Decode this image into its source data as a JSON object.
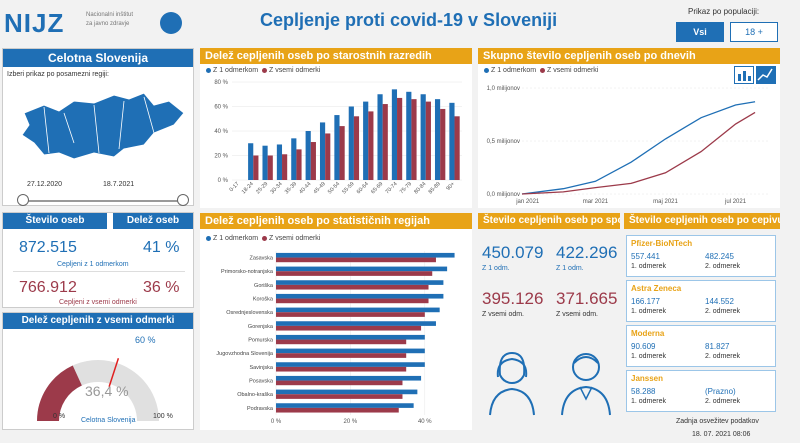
{
  "header": {
    "logo_text": "NIJZ",
    "logo_sub": [
      "Nacionalni inštitut",
      "za javno zdravje"
    ],
    "title": "Cepljenje proti covid-19 v Sloveniji",
    "population_label": "Prikaz po populaciji:",
    "pop_buttons": [
      "Vsi",
      "18 +"
    ]
  },
  "region": {
    "title": "Celotna Slovenija",
    "prompt": "Izberi prikaz po posamezni regiji:",
    "date_from": "27.12.2020",
    "date_to": "18.7.2021"
  },
  "stats": {
    "head_left": "Število oseb",
    "head_right": "Delež oseb",
    "first_count": "872.515",
    "first_pct": "41 %",
    "first_label": "Cepljeni z 1 odmerkom",
    "full_count": "766.912",
    "full_pct": "36 %",
    "full_label": "Cepljeni z vsemi odmerki"
  },
  "gauge": {
    "title": "Delež cepljenih z vsemi odmerki",
    "value_label": "36,4 %",
    "target_label": "60 %",
    "min_label": "0 %",
    "max_label": "100 %",
    "caption": "Celotna Slovenija",
    "value": 36.4,
    "target": 60
  },
  "age_chart": {
    "title": "Delež cepljenih oseb po starostnih razredih",
    "legend": [
      "Z 1 odmerkom",
      "Z vsemi odmerki"
    ],
    "y_ticks": [
      "0 %",
      "20 %",
      "40 %",
      "60 %",
      "80 %"
    ]
  },
  "daily_chart": {
    "title": "Skupno število cepljenih oseb po dnevih",
    "legend": [
      "Z 1 odmerkom",
      "Z vsemi odmerki"
    ],
    "y_ticks": [
      "0,0 milijonov",
      "0,5 milijonov",
      "1,0 milijonov"
    ],
    "x_ticks": [
      "jan 2021",
      "mar 2021",
      "maj 2021",
      "jul 2021"
    ]
  },
  "region_chart": {
    "title": "Delež cepljenih oseb po statističnih regijah",
    "legend": [
      "Z 1 odmerkom",
      "Z vsemi odmerki"
    ],
    "x_ticks": [
      "0 %",
      "20 %",
      "40 %"
    ]
  },
  "sex": {
    "title": "Število cepljenih oseb po spolu",
    "f_first": "450.079",
    "m_first": "422.296",
    "first_label": "Z 1 odm.",
    "f_full": "395.126",
    "m_full": "371.665",
    "full_label": "Z vsemi odm."
  },
  "vaccines": {
    "title": "Število cepljenih oseb po cepivu",
    "items": [
      {
        "name": "Pfizer-BioNTech",
        "v1": "557.441",
        "v2": "482.245",
        "l1": "1. odmerek",
        "l2": "2. odmerek"
      },
      {
        "name": "Astra Zeneca",
        "v1": "166.177",
        "v2": "144.552",
        "l1": "1. odmerek",
        "l2": "2. odmerek"
      },
      {
        "name": "Moderna",
        "v1": "90.609",
        "v2": "81.827",
        "l1": "1. odmerek",
        "l2": "2. odmerek"
      },
      {
        "name": "Janssen",
        "v1": "58.288",
        "v2": "(Prazno)",
        "l1": "1. odmerek",
        "l2": "2. odmerek"
      }
    ]
  },
  "footer": {
    "updated_label": "Zadnja osvežitev podatkov",
    "updated_value": "18. 07. 2021 08:06"
  },
  "colors": {
    "blue": "#1f6fb5",
    "maroon": "#9c3a4a",
    "orange": "#e8a317"
  },
  "chart_data": [
    {
      "type": "bar",
      "title": "Delež cepljenih oseb po starostnih razredih",
      "categories": [
        "0-17",
        "18-24",
        "25-29",
        "30-34",
        "35-39",
        "40-44",
        "45-49",
        "50-54",
        "55-59",
        "60-64",
        "65-69",
        "70-74",
        "75-79",
        "80-84",
        "85-89",
        "90+"
      ],
      "series": [
        {
          "name": "Z 1 odmerkom",
          "values": [
            0,
            30,
            28,
            29,
            34,
            40,
            47,
            53,
            60,
            64,
            70,
            74,
            72,
            70,
            66,
            63
          ]
        },
        {
          "name": "Z vsemi odmerki",
          "values": [
            0,
            20,
            20,
            21,
            25,
            31,
            38,
            44,
            52,
            56,
            62,
            67,
            66,
            64,
            58,
            52
          ]
        }
      ],
      "ylim": [
        0,
        80
      ]
    },
    {
      "type": "line",
      "title": "Skupno število cepljenih oseb po dnevih",
      "x": [
        "2020-12-27",
        "2021-02-01",
        "2021-03-01",
        "2021-04-01",
        "2021-05-01",
        "2021-06-01",
        "2021-07-01",
        "2021-07-18"
      ],
      "series": [
        {
          "name": "Z 1 odmerkom",
          "values": [
            0.0,
            0.05,
            0.12,
            0.3,
            0.52,
            0.72,
            0.84,
            0.87
          ]
        },
        {
          "name": "Z vsemi odmerki",
          "values": [
            0.0,
            0.02,
            0.06,
            0.1,
            0.2,
            0.4,
            0.66,
            0.77
          ]
        }
      ],
      "ylim": [
        0,
        1.0
      ]
    },
    {
      "type": "bar",
      "title": "Delež cepljenih oseb po statističnih regijah",
      "categories": [
        "Zasavska",
        "Primorsko-notranjska",
        "Goriška",
        "Koroška",
        "Osrednjeslovenska",
        "Gorenjska",
        "Pomurska",
        "Jugovzhodna Slovenija",
        "Savinjska",
        "Posavska",
        "Obalno-kraška",
        "Podravska"
      ],
      "series": [
        {
          "name": "Z 1 odmerkom",
          "values": [
            48,
            46,
            45,
            45,
            44,
            43,
            40,
            40,
            40,
            39,
            38,
            37
          ]
        },
        {
          "name": "Z vsemi odmerki",
          "values": [
            43,
            42,
            41,
            41,
            40,
            39,
            35,
            35,
            35,
            34,
            34,
            33
          ]
        }
      ],
      "xlim": [
        0,
        50
      ]
    }
  ]
}
